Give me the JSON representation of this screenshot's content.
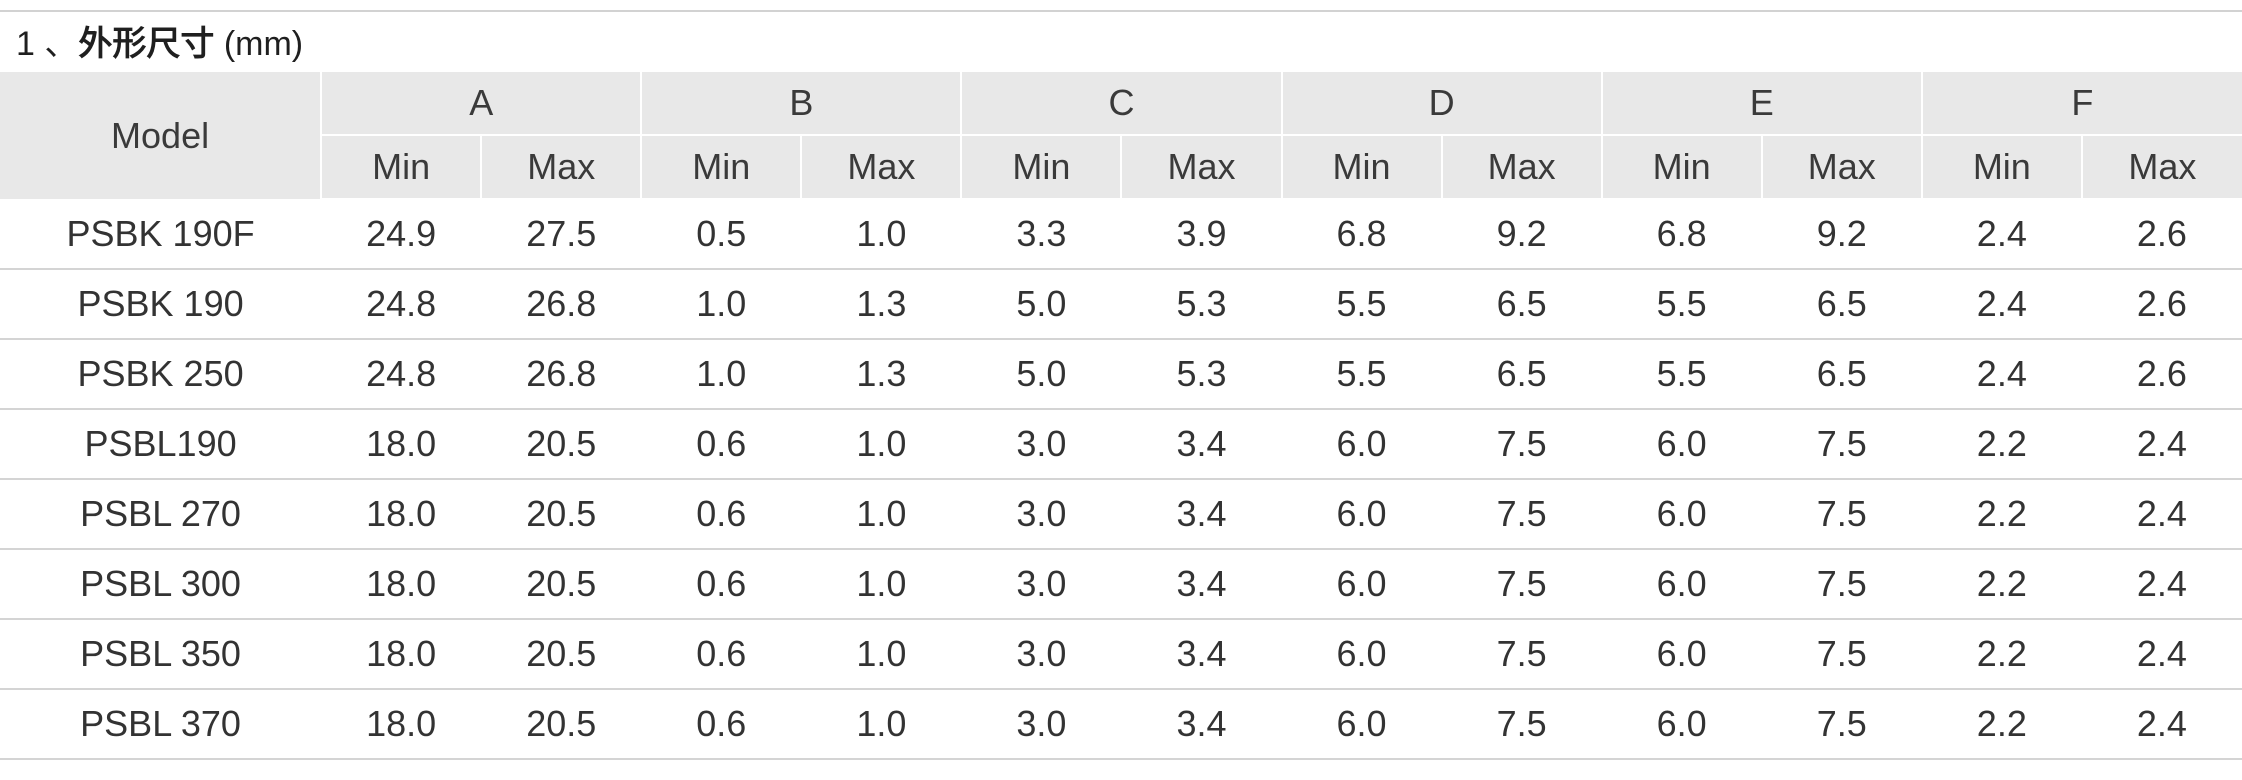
{
  "section": {
    "number": "1",
    "separator": "、",
    "title_zh": "外形尺寸",
    "unit": "(mm)"
  },
  "table": {
    "model_header": "Model",
    "groups": [
      "A",
      "B",
      "C",
      "D",
      "E",
      "F"
    ],
    "min_label": "Min",
    "max_label": "Max",
    "rows": [
      {
        "model": "PSBK 190F",
        "values": [
          "24.9",
          "27.5",
          "0.5",
          "1.0",
          "3.3",
          "3.9",
          "6.8",
          "9.2",
          "6.8",
          "9.2",
          "2.4",
          "2.6"
        ]
      },
      {
        "model": "PSBK 190",
        "values": [
          "24.8",
          "26.8",
          "1.0",
          "1.3",
          "5.0",
          "5.3",
          "5.5",
          "6.5",
          "5.5",
          "6.5",
          "2.4",
          "2.6"
        ]
      },
      {
        "model": "PSBK 250",
        "values": [
          "24.8",
          "26.8",
          "1.0",
          "1.3",
          "5.0",
          "5.3",
          "5.5",
          "6.5",
          "5.5",
          "6.5",
          "2.4",
          "2.6"
        ]
      },
      {
        "model": "PSBL190",
        "values": [
          "18.0",
          "20.5",
          "0.6",
          "1.0",
          "3.0",
          "3.4",
          "6.0",
          "7.5",
          "6.0",
          "7.5",
          "2.2",
          "2.4"
        ]
      },
      {
        "model": "PSBL 270",
        "values": [
          "18.0",
          "20.5",
          "0.6",
          "1.0",
          "3.0",
          "3.4",
          "6.0",
          "7.5",
          "6.0",
          "7.5",
          "2.2",
          "2.4"
        ]
      },
      {
        "model": "PSBL 300",
        "values": [
          "18.0",
          "20.5",
          "0.6",
          "1.0",
          "3.0",
          "3.4",
          "6.0",
          "7.5",
          "6.0",
          "7.5",
          "2.2",
          "2.4"
        ]
      },
      {
        "model": "PSBL 350",
        "values": [
          "18.0",
          "20.5",
          "0.6",
          "1.0",
          "3.0",
          "3.4",
          "6.0",
          "7.5",
          "6.0",
          "7.5",
          "2.2",
          "2.4"
        ]
      },
      {
        "model": "PSBL 370",
        "values": [
          "18.0",
          "20.5",
          "0.6",
          "1.0",
          "3.0",
          "3.4",
          "6.0",
          "7.5",
          "6.0",
          "7.5",
          "2.2",
          "2.4"
        ]
      }
    ]
  }
}
